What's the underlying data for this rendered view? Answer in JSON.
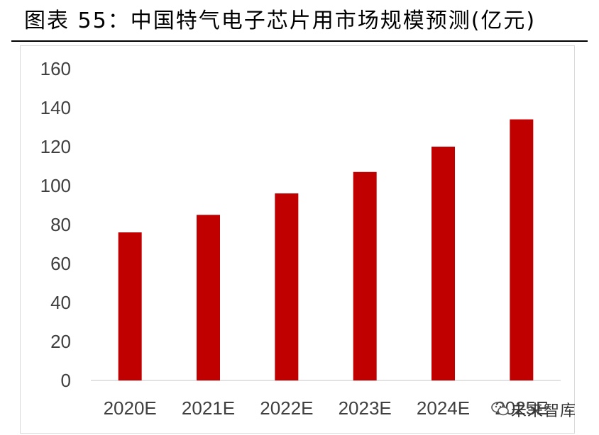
{
  "title": "图表 55：中国特气电子芯片用市场规模预测(亿元)",
  "watermark": {
    "text": "未来智库",
    "icon": "wechat-icon"
  },
  "colors": {
    "bar": "#c00000",
    "axis": "#d9d9d9",
    "tick_text": "#404040"
  },
  "chart_data": {
    "type": "bar",
    "title": "",
    "xlabel": "",
    "ylabel": "",
    "categories": [
      "2020E",
      "2021E",
      "2022E",
      "2023E",
      "2024E",
      "2025E"
    ],
    "values": [
      76,
      85,
      96,
      107,
      120,
      134
    ],
    "ylim": [
      0,
      160
    ],
    "yticks": [
      0,
      20,
      40,
      60,
      80,
      100,
      120,
      140,
      160
    ],
    "grid": false,
    "legend": "none"
  }
}
